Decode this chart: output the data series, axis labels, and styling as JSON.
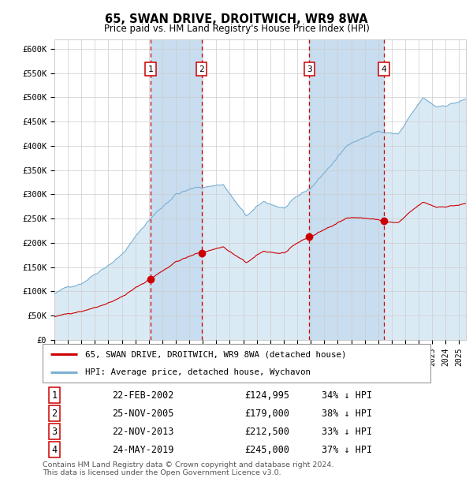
{
  "title": "65, SWAN DRIVE, DROITWICH, WR9 8WA",
  "subtitle": "Price paid vs. HM Land Registry's House Price Index (HPI)",
  "ylabel_ticks": [
    "£0",
    "£50K",
    "£100K",
    "£150K",
    "£200K",
    "£250K",
    "£300K",
    "£350K",
    "£400K",
    "£450K",
    "£500K",
    "£550K",
    "£600K"
  ],
  "ytick_values": [
    0,
    50000,
    100000,
    150000,
    200000,
    250000,
    300000,
    350000,
    400000,
    450000,
    500000,
    550000,
    600000
  ],
  "ylim": [
    0,
    620000
  ],
  "xlim_start": 1995.0,
  "xlim_end": 2025.5,
  "sale_dates": [
    2002.13,
    2005.9,
    2013.9,
    2019.4
  ],
  "sale_prices": [
    124995,
    179000,
    212500,
    245000
  ],
  "sale_labels": [
    "1",
    "2",
    "3",
    "4"
  ],
  "legend_line1": "65, SWAN DRIVE, DROITWICH, WR9 8WA (detached house)",
  "legend_line2": "HPI: Average price, detached house, Wychavon",
  "table_rows": [
    [
      "1",
      "22-FEB-2002",
      "£124,995",
      "34% ↓ HPI"
    ],
    [
      "2",
      "25-NOV-2005",
      "£179,000",
      "38% ↓ HPI"
    ],
    [
      "3",
      "22-NOV-2013",
      "£212,500",
      "33% ↓ HPI"
    ],
    [
      "4",
      "24-MAY-2019",
      "£245,000",
      "37% ↓ HPI"
    ]
  ],
  "footnote": "Contains HM Land Registry data © Crown copyright and database right 2024.\nThis data is licensed under the Open Government Licence v3.0.",
  "hpi_line_color": "#7ab0d4",
  "hpi_fill_color": "#daeaf5",
  "hpi_shade_color": "#c8ddef",
  "sale_color": "#cc0000",
  "vline_color": "#cc0000",
  "background_color": "#ffffff",
  "grid_color": "#cccccc"
}
